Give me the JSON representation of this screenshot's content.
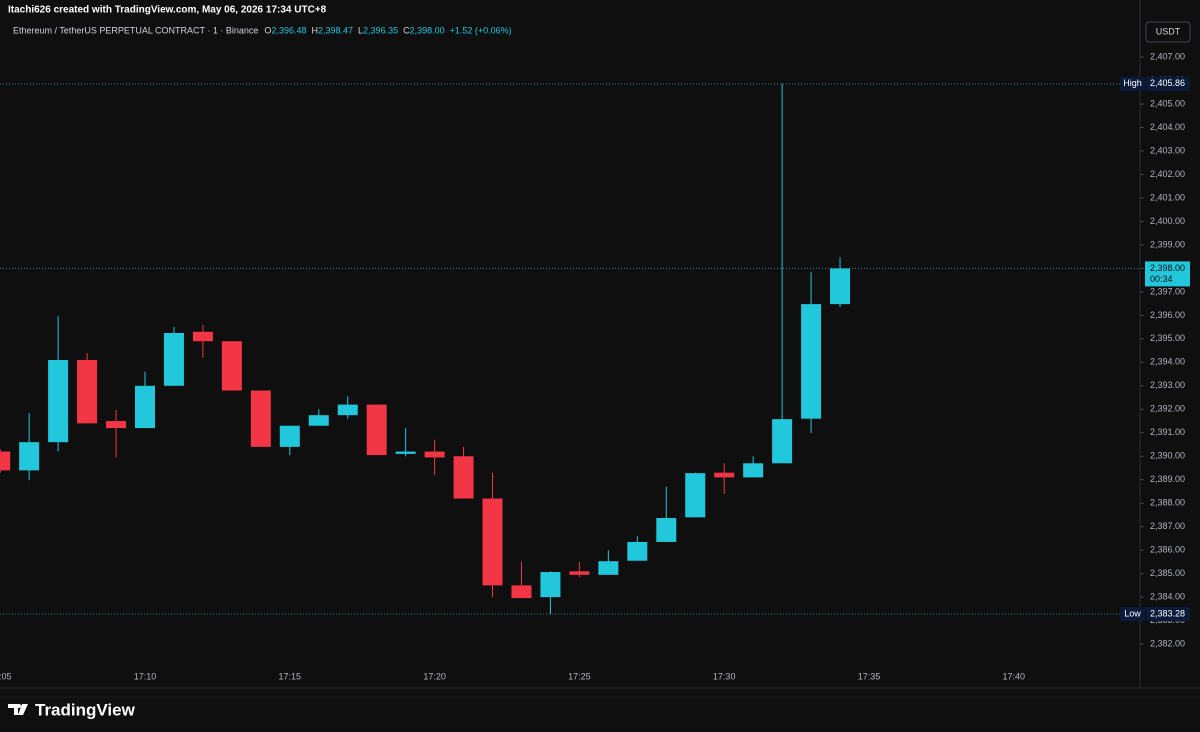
{
  "chart_data": {
    "type": "candlestick",
    "watermark": "Itachi626 created with TradingView.com, May 06, 2026 17:34 UTC+8",
    "title": "Ethereum / TetherUS PERPETUAL CONTRACT · 1 · Binance",
    "ohlc": [
      {
        "key": "O",
        "label": "2,396.48"
      },
      {
        "key": "H",
        "label": "2,398.47"
      },
      {
        "key": "L",
        "label": "2,396.35"
      },
      {
        "key": "C",
        "label": "2,398.00"
      }
    ],
    "change": "+1.52 (+0.06%)",
    "currency": "USDT",
    "brand": "TradingView",
    "colors": {
      "up": "#22c7dc",
      "down": "#f23645"
    },
    "categories": [
      "17:05",
      "17:06",
      "17:07",
      "17:08",
      "17:09",
      "17:10",
      "17:11",
      "17:12",
      "17:13",
      "17:14",
      "17:15",
      "17:16",
      "17:17",
      "17:18",
      "17:19",
      "17:20",
      "17:21",
      "17:22",
      "17:23",
      "17:24",
      "17:25",
      "17:26",
      "17:27",
      "17:28",
      "17:29",
      "17:30",
      "17:31",
      "17:32",
      "17:33",
      "17:34"
    ],
    "open": [
      2390.2,
      2389.4,
      2390.6,
      2394.1,
      2391.5,
      2391.2,
      2393.0,
      2395.3,
      2394.9,
      2392.8,
      2390.4,
      2391.3,
      2391.75,
      2392.2,
      2390.1,
      2390.2,
      2390.0,
      2388.2,
      2384.5,
      2384.0,
      2385.1,
      2384.95,
      2385.55,
      2386.35,
      2387.4,
      2389.3,
      2389.1,
      2389.7,
      2391.6,
      2396.48
    ],
    "high": [
      2390.3,
      2391.84,
      2395.97,
      2394.4,
      2391.97,
      2393.6,
      2395.5,
      2395.6,
      2394.9,
      2392.8,
      2391.3,
      2392.0,
      2392.56,
      2392.2,
      2391.2,
      2390.7,
      2390.4,
      2389.3,
      2385.5,
      2385.1,
      2385.5,
      2386.0,
      2386.6,
      2388.7,
      2389.3,
      2389.7,
      2390.0,
      2405.86,
      2397.84,
      2398.47
    ],
    "low": [
      2389.3,
      2388.98,
      2390.2,
      2391.4,
      2389.96,
      2391.2,
      2393.0,
      2394.2,
      2392.8,
      2390.4,
      2390.05,
      2391.3,
      2391.6,
      2390.05,
      2390.0,
      2389.2,
      2388.2,
      2384.0,
      2383.96,
      2383.28,
      2384.85,
      2384.95,
      2385.55,
      2386.35,
      2387.4,
      2388.4,
      2389.1,
      2389.7,
      2390.99,
      2396.35
    ],
    "close": [
      2389.4,
      2390.6,
      2394.1,
      2391.4,
      2391.2,
      2393.0,
      2395.25,
      2394.9,
      2392.8,
      2390.4,
      2391.3,
      2391.75,
      2392.2,
      2390.05,
      2390.2,
      2389.95,
      2388.2,
      2384.5,
      2383.96,
      2385.07,
      2384.95,
      2385.53,
      2386.35,
      2387.37,
      2389.28,
      2389.1,
      2389.7,
      2391.58,
      2396.48,
      2398.0
    ],
    "ylim": [
      2380.13,
      2408.58
    ],
    "yticks": [
      {
        "value": 2382,
        "label": "2,382.00"
      },
      {
        "value": 2383,
        "label": "2,383.00"
      },
      {
        "value": 2384,
        "label": "2,384.00"
      },
      {
        "value": 2385,
        "label": "2,385.00"
      },
      {
        "value": 2386,
        "label": "2,386.00"
      },
      {
        "value": 2387,
        "label": "2,387.00"
      },
      {
        "value": 2388,
        "label": "2,388.00"
      },
      {
        "value": 2389,
        "label": "2,389.00"
      },
      {
        "value": 2390,
        "label": "2,390.00"
      },
      {
        "value": 2391,
        "label": "2,391.00"
      },
      {
        "value": 2392,
        "label": "2,392.00"
      },
      {
        "value": 2393,
        "label": "2,393.00"
      },
      {
        "value": 2394,
        "label": "2,394.00"
      },
      {
        "value": 2395,
        "label": "2,395.00"
      },
      {
        "value": 2396,
        "label": "2,396.00"
      },
      {
        "value": 2397,
        "label": "2,397.00"
      },
      {
        "value": 2398,
        "label": "2,398.00"
      },
      {
        "value": 2399,
        "label": "2,399.00"
      },
      {
        "value": 2400,
        "label": "2,400.00"
      },
      {
        "value": 2401,
        "label": "2,401.00"
      },
      {
        "value": 2402,
        "label": "2,402.00"
      },
      {
        "value": 2403,
        "label": "2,403.00"
      },
      {
        "value": 2404,
        "label": "2,404.00"
      },
      {
        "value": 2405,
        "label": "2,405.00"
      },
      {
        "value": 2406,
        "label": "2,406.00"
      },
      {
        "value": 2407,
        "label": "2,407.00"
      }
    ],
    "xticks": [
      "17:05",
      "17:10",
      "17:15",
      "17:20",
      "17:25",
      "17:30",
      "17:35",
      "17:40"
    ],
    "high_marker": {
      "text": "High",
      "value": 2405.86,
      "label": "2,405.86"
    },
    "low_marker": {
      "text": "Low",
      "value": 2383.28,
      "label": "2,383.28"
    },
    "last_price": {
      "value": 2398.0,
      "label": "2,398.00",
      "countdown": "00:34"
    }
  }
}
